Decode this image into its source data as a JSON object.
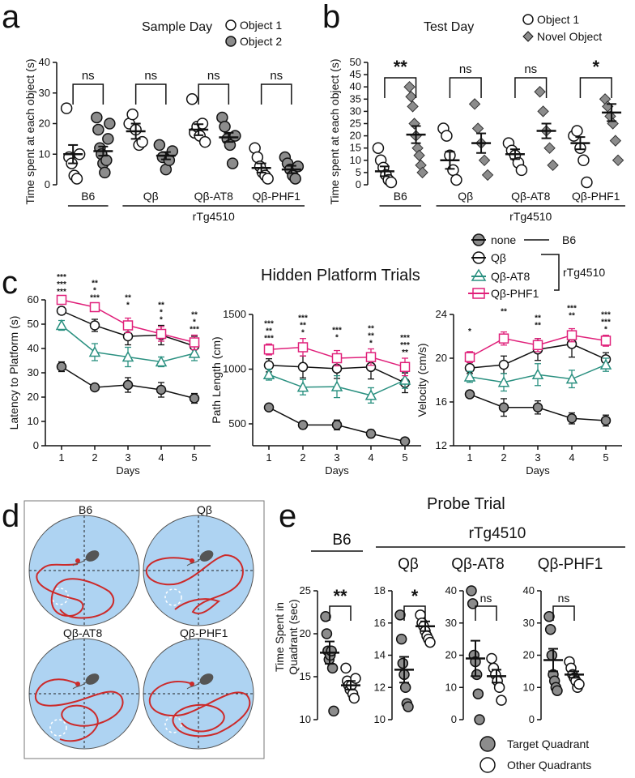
{
  "colors": {
    "teal": "#2a9080",
    "magenta": "#e0207a",
    "black": "#111111",
    "gray": "#8c8c8c",
    "pool": "#aed3f2",
    "path": "#cc2a2a"
  },
  "panel_letters": [
    "a",
    "b",
    "c",
    "d",
    "e"
  ],
  "chart_data": [
    {
      "id": "a",
      "type": "scatter",
      "title": "Sample Day",
      "ylabel": "Time spent at each object (s)",
      "ylim": [
        0,
        40
      ],
      "yticks": [
        0,
        10,
        20,
        30,
        40
      ],
      "categories": [
        "B6",
        "Qβ",
        "Qβ-AT8",
        "Qβ-PHF1"
      ],
      "group_label": "rTg4510",
      "legend": [
        "Object 1",
        "Object 2"
      ],
      "series": [
        {
          "name": "Object 1",
          "marker": "circle-open",
          "means": [
            10,
            17.5,
            18,
            5.5
          ],
          "sem": [
            3,
            2.5,
            1.8,
            1.5
          ],
          "points": [
            [
              25,
              9,
              7,
              3,
              2,
              10
            ],
            [
              20,
              23,
              18,
              13,
              14
            ],
            [
              28,
              17,
              19,
              16,
              20,
              14
            ],
            [
              12,
              9,
              6,
              4,
              3,
              2
            ]
          ]
        },
        {
          "name": "Object 2",
          "marker": "circle-filled",
          "means": [
            11,
            9.5,
            15.5,
            5
          ],
          "sem": [
            1.5,
            1.2,
            1.5,
            1.2
          ],
          "points": [
            [
              22,
              18,
              12,
              10,
              7,
              4,
              8,
              15,
              20
            ],
            [
              13,
              9,
              5,
              8,
              11
            ],
            [
              22,
              19,
              15,
              13,
              7,
              16
            ],
            [
              9,
              7,
              5,
              3,
              2,
              6
            ]
          ]
        }
      ],
      "annotations": [
        "ns",
        "ns",
        "ns",
        "ns"
      ]
    },
    {
      "id": "b",
      "type": "scatter",
      "title": "Test Day",
      "ylabel": "Time spent at each object (s)",
      "ylim": [
        0,
        50
      ],
      "yticks": [
        0,
        5,
        10,
        15,
        20,
        25,
        30,
        35,
        40,
        45,
        50
      ],
      "categories": [
        "B6",
        "Qβ",
        "Qβ-AT8",
        "Qβ-PHF1"
      ],
      "group_label": "rTg4510",
      "legend": [
        "Object 1",
        "Novel Object"
      ],
      "series": [
        {
          "name": "Object 1",
          "marker": "circle-open",
          "means": [
            5.5,
            10,
            12.5,
            17
          ],
          "sem": [
            2,
            3.5,
            2,
            2.5
          ],
          "points": [
            [
              15,
              10,
              7,
              4,
              2,
              1
            ],
            [
              23,
              20,
              12,
              6,
              2
            ],
            [
              17,
              14,
              12,
              9,
              6
            ],
            [
              20,
              22,
              15,
              10,
              1
            ]
          ]
        },
        {
          "name": "Novel Object",
          "marker": "diamond-filled",
          "means": [
            20.5,
            17,
            22,
            29.5
          ],
          "sem": [
            3.5,
            4,
            3,
            3.5
          ],
          "points": [
            [
              40,
              36,
              32,
              25,
              20,
              15,
              12,
              8,
              5
            ],
            [
              33,
              23,
              17,
              10,
              4
            ],
            [
              38,
              30,
              22,
              15,
              8
            ],
            [
              35,
              32,
              28,
              25,
              18,
              10
            ]
          ]
        }
      ],
      "annotations": [
        "**",
        "ns",
        "ns",
        "*"
      ]
    },
    {
      "id": "c1",
      "type": "line",
      "ylabel": "Latency to Platform (s)",
      "xlabel": "Days",
      "x": [
        1,
        2,
        3,
        4,
        5
      ],
      "ylim": [
        0,
        60
      ],
      "yticks": [
        0,
        10,
        20,
        30,
        40,
        50,
        60
      ],
      "series": [
        {
          "name": "none",
          "values": [
            32.5,
            24,
            25,
            23,
            19.5
          ],
          "sem": [
            2,
            1,
            3,
            3,
            2
          ]
        },
        {
          "name": "Qβ",
          "values": [
            55.5,
            49.5,
            45,
            45.5,
            41
          ],
          "sem": [
            1.5,
            2.5,
            3.5,
            4,
            4
          ]
        },
        {
          "name": "Qβ-AT8",
          "values": [
            49.5,
            38.5,
            36.5,
            34.5,
            38
          ],
          "sem": [
            2,
            3.5,
            4,
            2,
            3
          ]
        },
        {
          "name": "Qβ-PHF1",
          "values": [
            60,
            57,
            49.5,
            46,
            42.5
          ],
          "sem": [
            1,
            1.5,
            3,
            3,
            3
          ]
        }
      ],
      "sig_rows": [
        [
          "***",
          "**",
          "**",
          "**",
          "**"
        ],
        [
          "***",
          "*",
          "*",
          "*",
          "*"
        ],
        [
          "***",
          "***",
          "",
          "*",
          "***"
        ]
      ]
    },
    {
      "id": "c2",
      "type": "line",
      "ylabel": "Path Length (cm)",
      "xlabel": "Days",
      "x": [
        1,
        2,
        3,
        4,
        5
      ],
      "ylim": [
        300,
        1500
      ],
      "yticks": [
        500,
        1000,
        1500
      ],
      "series": [
        {
          "name": "none",
          "values": [
            650,
            490,
            490,
            410,
            340
          ],
          "sem": [
            30,
            35,
            45,
            35,
            25
          ]
        },
        {
          "name": "Qβ",
          "values": [
            1035,
            1020,
            1005,
            1020,
            875
          ],
          "sem": [
            60,
            100,
            90,
            110,
            90
          ]
        },
        {
          "name": "Qβ-AT8",
          "values": [
            950,
            835,
            840,
            760,
            900
          ],
          "sem": [
            50,
            70,
            100,
            70,
            75
          ]
        },
        {
          "name": "Qβ-PHF1",
          "values": [
            1180,
            1200,
            1100,
            1110,
            1020
          ],
          "sem": [
            50,
            80,
            70,
            75,
            80
          ]
        }
      ],
      "sig_rows": [
        [
          "***",
          "***",
          "***",
          "**",
          "***"
        ],
        [
          "**",
          "**",
          "*",
          "**",
          "***"
        ],
        [
          "***",
          "*",
          "",
          "*",
          "**"
        ]
      ]
    },
    {
      "id": "c3",
      "type": "line",
      "ylabel": "Velocity (cm/s)",
      "xlabel": "Days",
      "x": [
        1,
        2,
        3,
        4,
        5
      ],
      "ylim": [
        12,
        24
      ],
      "yticks": [
        12,
        16,
        20,
        24
      ],
      "series": [
        {
          "name": "none",
          "values": [
            16.7,
            15.5,
            15.5,
            14.5,
            14.3
          ],
          "sem": [
            0.3,
            0.8,
            0.6,
            0.5,
            0.5
          ]
        },
        {
          "name": "Qβ",
          "values": [
            19.1,
            19.4,
            20.8,
            21.3,
            19.9
          ],
          "sem": [
            0.5,
            0.8,
            1,
            1.2,
            0.6
          ]
        },
        {
          "name": "Qβ-AT8",
          "values": [
            18.3,
            17.8,
            18.5,
            18.1,
            19.4
          ],
          "sem": [
            0.5,
            0.8,
            1,
            0.8,
            0.6
          ]
        },
        {
          "name": "Qβ-PHF1",
          "values": [
            20.1,
            21.8,
            21.2,
            22.1,
            21.6
          ],
          "sem": [
            0.5,
            0.6,
            0.6,
            0.6,
            0.5
          ]
        }
      ],
      "sig_rows": [
        [
          "*",
          "**",
          "**",
          "***",
          "***"
        ],
        [
          "",
          "",
          "**",
          "**",
          "***"
        ],
        [
          "",
          "",
          "",
          "",
          "*"
        ]
      ]
    },
    {
      "id": "e",
      "type": "scatter",
      "title": "Probe Trial",
      "ylabel": "Time Spent in Quadrant (sec)",
      "legend": [
        "Target Quadrant",
        "Other Quadrants"
      ],
      "group_label": "rTg4510",
      "groups": [
        {
          "name": "B6",
          "ylim": [
            10,
            25
          ],
          "yticks": [
            10,
            15,
            20,
            25
          ],
          "target": [
            22,
            20,
            18,
            17,
            17.5,
            18,
            16,
            11
          ],
          "other": [
            16,
            14.5,
            14,
            13.5,
            14,
            13,
            12.5,
            14.8
          ],
          "means": [
            17.8,
            14
          ],
          "sem": [
            1.3,
            0.5
          ],
          "sig": "**"
        },
        {
          "name": "Qβ",
          "ylim": [
            10,
            18
          ],
          "yticks": [
            10,
            12,
            14,
            16,
            18
          ],
          "target": [
            16.5,
            15,
            13.5,
            12.8,
            12,
            11,
            10.8
          ],
          "other": [
            16.5,
            16,
            15.8,
            15.5,
            15.2,
            15,
            14.8
          ],
          "means": [
            13.1,
            15.8
          ],
          "sem": [
            0.8,
            0.3
          ],
          "sig": "*"
        },
        {
          "name": "Qβ-AT8",
          "ylim": [
            0,
            40
          ],
          "yticks": [
            0,
            10,
            20,
            30,
            40
          ],
          "target": [
            40,
            36,
            20,
            18,
            14,
            8,
            0
          ],
          "other": [
            19,
            16,
            14,
            12,
            10,
            6
          ],
          "means": [
            19,
            13.5
          ],
          "sem": [
            5.5,
            2
          ],
          "sig": "ns"
        },
        {
          "name": "Qβ-PHF1",
          "ylim": [
            0,
            40
          ],
          "yticks": [
            0,
            10,
            20,
            30,
            40
          ],
          "target": [
            32,
            28,
            20,
            14,
            12,
            10,
            9
          ],
          "other": [
            18,
            16,
            14,
            13,
            12,
            10,
            11
          ],
          "means": [
            18.5,
            14
          ],
          "sem": [
            3.5,
            1
          ],
          "sig": "ns"
        }
      ]
    }
  ],
  "panel_c": {
    "title": "Hidden Platform Trials",
    "legend": [
      {
        "label": "none",
        "group": "B6"
      },
      {
        "label": "Qβ",
        "group": "rTg4510"
      },
      {
        "label": "Qβ-AT8",
        "group": "rTg4510"
      },
      {
        "label": "Qβ-PHF1",
        "group": "rTg4510"
      }
    ]
  },
  "panel_d": {
    "pools": [
      "B6",
      "Qβ",
      "Qβ-AT8",
      "Qβ-PHF1"
    ]
  }
}
